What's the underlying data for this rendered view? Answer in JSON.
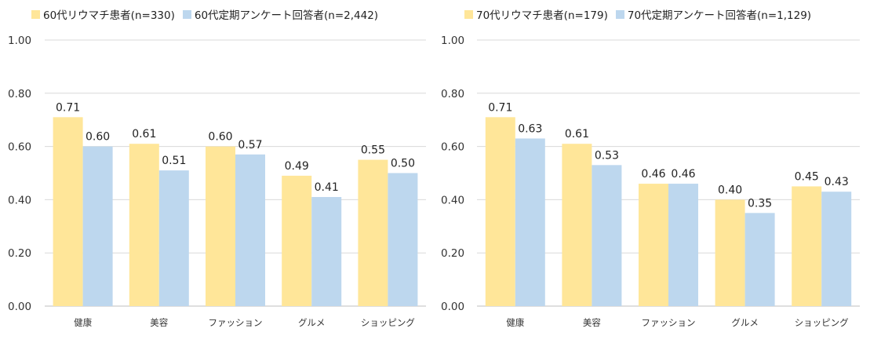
{
  "chart_data": [
    {
      "type": "bar",
      "categories": [
        "健康",
        "美容",
        "ファッション",
        "グルメ",
        "ショッピング"
      ],
      "series": [
        {
          "name": "60代リウマチ患者(n=330)",
          "values": [
            0.71,
            0.61,
            0.6,
            0.49,
            0.55
          ],
          "labels": [
            "0.71",
            "0.61",
            "0.60",
            "0.49",
            "0.55"
          ],
          "color": "#FFE699"
        },
        {
          "name": "60代定期アンケート回答者(n=2,442)",
          "values": [
            0.6,
            0.51,
            0.57,
            0.41,
            0.5
          ],
          "labels": [
            "0.60",
            "0.51",
            "0.57",
            "0.41",
            "0.50"
          ],
          "color": "#BDD7EE"
        }
      ],
      "ylim": [
        0,
        1.0
      ],
      "yticks": [
        "0.00",
        "0.20",
        "0.40",
        "0.60",
        "0.80",
        "1.00"
      ],
      "grid": true,
      "legend": "top"
    },
    {
      "type": "bar",
      "categories": [
        "健康",
        "美容",
        "ファッション",
        "グルメ",
        "ショッピング"
      ],
      "series": [
        {
          "name": "70代リウマチ患者(n=179)",
          "values": [
            0.71,
            0.61,
            0.46,
            0.4,
            0.45
          ],
          "labels": [
            "0.71",
            "0.61",
            "0.46",
            "0.40",
            "0.45"
          ],
          "color": "#FFE699"
        },
        {
          "name": "70代定期アンケート回答者(n=1,129)",
          "values": [
            0.63,
            0.53,
            0.46,
            0.35,
            0.43
          ],
          "labels": [
            "0.63",
            "0.53",
            "0.46",
            "0.35",
            "0.43"
          ],
          "color": "#BDD7EE"
        }
      ],
      "ylim": [
        0,
        1.0
      ],
      "yticks": [
        "0.00",
        "0.20",
        "0.40",
        "0.60",
        "0.80",
        "1.00"
      ],
      "grid": true,
      "legend": "top"
    }
  ]
}
